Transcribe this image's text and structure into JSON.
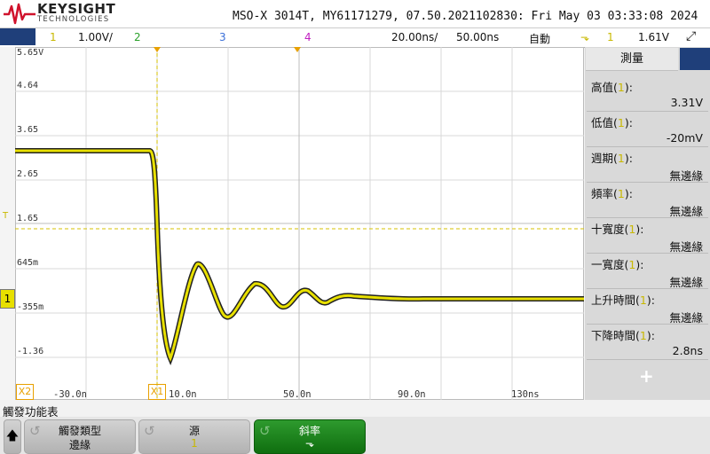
{
  "header": {
    "brand": "KEYSIGHT",
    "brand_sub": "TECHNOLOGIES",
    "instrument_info": "MSO-X 3014T, MY61171279, 07.50.2021102830: Fri May 03 03:33:08 2024"
  },
  "channel_bar": {
    "ch1_num": "1",
    "ch1_scale": "1.00V/",
    "ch2_num": "2",
    "ch3_num": "3",
    "ch4_num": "4",
    "time_delay": "20.00ns/",
    "time_scale": "50.00ns",
    "trigger_mode": "自動",
    "trigger_icon": "trigger-edge-icon",
    "trigger_channel": "1",
    "trigger_level": "1.61V"
  },
  "plot": {
    "y_labels": [
      "5.65V",
      "4.64",
      "3.65",
      "2.65",
      "1.65",
      "645m",
      "-355m",
      "-1.36"
    ],
    "x_labels": [
      "-30.0n",
      "10.0n",
      "50.0n",
      "90.0n",
      "130ns"
    ],
    "x1_marker": "X1",
    "x2_marker": "X2",
    "trigger_marker": "T",
    "ch1_marker": "1"
  },
  "measurements": {
    "title": "測量",
    "items": [
      {
        "label": "高值",
        "ch": "1",
        "value": "3.31V"
      },
      {
        "label": "低值",
        "ch": "1",
        "value": "-20mV"
      },
      {
        "label": "週期",
        "ch": "1",
        "value": "無邊緣"
      },
      {
        "label": "頻率",
        "ch": "1",
        "value": "無邊緣"
      },
      {
        "label": "十寬度",
        "ch": "1",
        "value": "無邊緣"
      },
      {
        "label": "一寬度",
        "ch": "1",
        "value": "無邊緣"
      },
      {
        "label": "上升時間",
        "ch": "1",
        "value": "無邊緣"
      },
      {
        "label": "下降時間",
        "ch": "1",
        "value": "2.8ns"
      }
    ],
    "add_symbol": "+"
  },
  "softkeys": {
    "menu_title": "觸發功能表",
    "trigger_type_label": "觸發類型",
    "trigger_type_value": "邊緣",
    "source_label": "源",
    "source_value": "1",
    "slope_label": "斜率",
    "slope_value": "⬎"
  },
  "colors": {
    "ch1": "#e8e000",
    "accent_blue": "#1f3f7a",
    "softkey_green": "#1a8a1a"
  }
}
